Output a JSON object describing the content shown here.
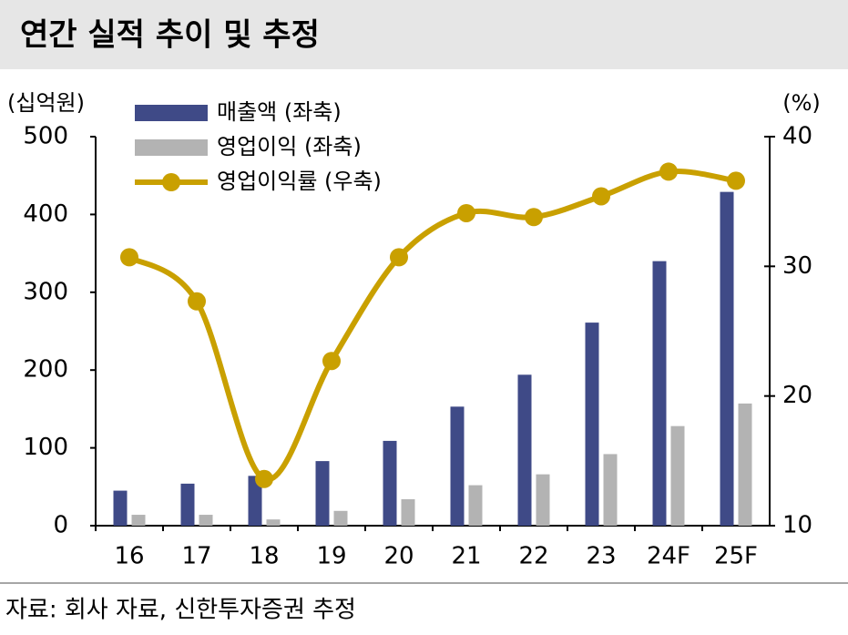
{
  "chart_data": {
    "type": "bar",
    "title": "연간 실적 추이 및 추정",
    "y_label": "(십억원)",
    "y2_label": "(%)",
    "source": "자료: 회사 자료, 신한투자증권 추정",
    "categories": [
      "16",
      "17",
      "18",
      "19",
      "20",
      "21",
      "22",
      "23",
      "24F",
      "25F"
    ],
    "series": [
      {
        "name": "매출액 (좌축)",
        "color": "#3f4a87",
        "type": "bar",
        "values": [
          45,
          54,
          64,
          83,
          109,
          153,
          194,
          261,
          340,
          429
        ]
      },
      {
        "name": "영업이익 (좌축)",
        "color": "#b3b3b3",
        "type": "bar",
        "values": [
          14,
          14,
          8,
          19,
          34,
          52,
          66,
          92,
          128,
          157
        ]
      },
      {
        "name": "영업이익률 (우축)",
        "color": "#c9a000",
        "type": "line",
        "axis": "y2",
        "values": [
          30.7,
          27.3,
          13.6,
          22.7,
          30.7,
          34.1,
          33.8,
          35.4,
          37.3,
          36.6
        ]
      }
    ],
    "ylim": [
      0,
      500
    ],
    "yticks": [
      0,
      100,
      200,
      300,
      400,
      500
    ],
    "y2lim": [
      10,
      40
    ],
    "y2ticks": [
      10,
      20,
      30,
      40
    ],
    "grid": false
  }
}
